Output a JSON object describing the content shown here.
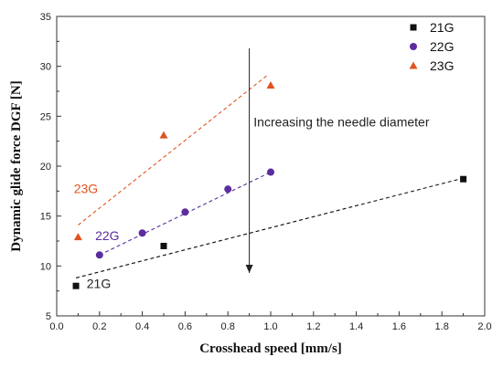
{
  "chart_data": {
    "type": "scatter",
    "xlabel": "Crosshead speed [mm/s]",
    "ylabel": "Dynamic glide force DGF [N]",
    "xlim": [
      0.0,
      2.0
    ],
    "ylim": [
      5,
      35
    ],
    "x_ticks": [
      "0.0",
      "0.2",
      "0.4",
      "0.6",
      "0.8",
      "1.0",
      "1.2",
      "1.4",
      "1.6",
      "1.8",
      "2.0"
    ],
    "y_ticks": [
      "5",
      "10",
      "15",
      "20",
      "25",
      "30",
      "35"
    ],
    "grid": false,
    "legend_position": "top-right",
    "series": [
      {
        "name": "21G",
        "marker": "square",
        "color": "#111111",
        "points": [
          {
            "x": 0.09,
            "y": 8.0
          },
          {
            "x": 0.5,
            "y": 12.0
          },
          {
            "x": 1.9,
            "y": 18.7
          }
        ],
        "trend": {
          "x": [
            0.09,
            1.9
          ],
          "y": [
            8.8,
            18.8
          ],
          "style": "dashed"
        }
      },
      {
        "name": "22G",
        "marker": "circle",
        "color": "#5b2d9e",
        "points": [
          {
            "x": 0.2,
            "y": 11.1
          },
          {
            "x": 0.4,
            "y": 13.3
          },
          {
            "x": 0.6,
            "y": 15.4
          },
          {
            "x": 0.8,
            "y": 17.7
          },
          {
            "x": 1.0,
            "y": 19.4
          }
        ],
        "trend": {
          "x": [
            0.2,
            1.0
          ],
          "y": [
            11.1,
            19.4
          ],
          "style": "dashed"
        }
      },
      {
        "name": "23G",
        "marker": "triangle",
        "color": "#e0531f",
        "points": [
          {
            "x": 0.1,
            "y": 12.9
          },
          {
            "x": 0.5,
            "y": 23.1
          },
          {
            "x": 1.0,
            "y": 28.1
          }
        ],
        "trend": {
          "x": [
            0.1,
            0.99
          ],
          "y": [
            14.1,
            29.2
          ],
          "style": "dashed"
        }
      }
    ],
    "annotations": [
      {
        "text": "21G",
        "x": 0.14,
        "y": 7.8,
        "color": "#222222"
      },
      {
        "text": "22G",
        "x": 0.18,
        "y": 12.6,
        "color": "#5b2d9e"
      },
      {
        "text": "23G",
        "x": 0.08,
        "y": 17.3,
        "color": "#e0531f"
      }
    ],
    "arrow": {
      "label": "Increasing the needle diameter",
      "x": 0.9,
      "y_start": 31.8,
      "y_end": 9.3,
      "label_x": 0.92,
      "label_y": 24.0
    }
  }
}
